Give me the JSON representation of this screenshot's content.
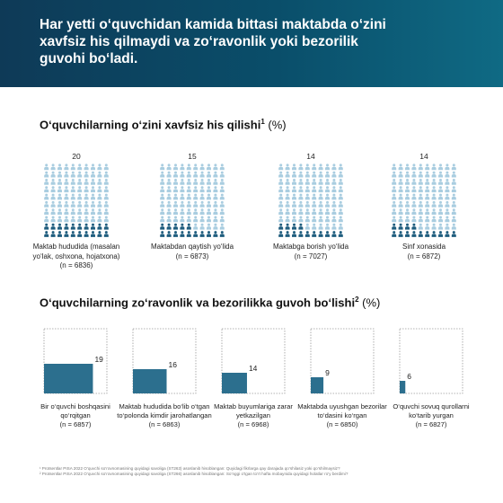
{
  "header": {
    "title": "Har yetti o‘quvchidan kamida bittasi maktabda o‘zini xavfsiz his qilmaydi va zo‘ravonlik yoki bezorilik guvohi bo‘ladi."
  },
  "section1": {
    "title": "O‘quvchilarning o‘zini xavfsiz his qilishi",
    "sup": "1",
    "unit": "(%)"
  },
  "section2": {
    "title": "O‘quvchilarning zo‘ravonlik va bezorilikka guvoh bo‘lishi",
    "sup": "2",
    "unit": "(%)"
  },
  "colors": {
    "highlight": "#1f5d7e",
    "muted": "#a9cde0",
    "bar": "#2c6f8e",
    "frame": "#9a9a9a"
  },
  "chart_data": [
    {
      "type": "pictogram",
      "title": "O‘quvchilarning o‘zini xavfsiz his qilishi (%)",
      "icon": "person-icon",
      "unit": "%",
      "categories": [
        "Maktab hududida (masalan\nyo‘lak, oshxona, hojatxona)\n(n = 6836)",
        "Maktabdan qaytish yo‘lida\n(n = 6873)",
        "Maktabga borish yo‘lida\n(n = 7027)",
        "Sinf xonasida\n(n = 6872)"
      ],
      "values": [
        20,
        15,
        14,
        14
      ]
    },
    {
      "type": "bar",
      "title": "O‘quvchilarning zo‘ravonlik va bezorilikka guvoh bo‘lishi (%)",
      "unit": "%",
      "categories": [
        "Bir o‘quvchi boshqasini\nqo‘rqitgan\n(n = 6857)",
        "Maktab hududida bo‘lib o‘tgan\nto‘polonda kimdir jarohatlangan\n(n = 6863)",
        "Maktab buyumlariga zarar\nyetkazilgan\n(n = 6968)",
        "Maktabda uyushgan bezorilar\nto‘dasini ko‘rgan\n(n = 6850)",
        "O‘quvchi sovuq qurollarni\nko‘tarib yurgan\n(n = 6827)"
      ],
      "values": [
        19,
        16,
        14,
        9,
        6
      ],
      "ylim": [
        0,
        100
      ]
    }
  ],
  "footnotes": [
    "¹ Protsentlar PISA 2022 O‘quvchi so‘rovnomasining quyidagi savoliga (ST263) asoslanib hisoblangan: Quyidagi fikrlarga qay darajada qo‘shilasiz yoki qo‘shilmaysiz?",
    "² Protsentlar PISA 2022 O‘quvchi so‘rovnomasining quyidagi savoliga (ST266) asoslanib hisoblangan: So‘nggi o‘tgan to‘rt hafta mobaynida quyidagi holatlar ro‘y berdimi?"
  ]
}
